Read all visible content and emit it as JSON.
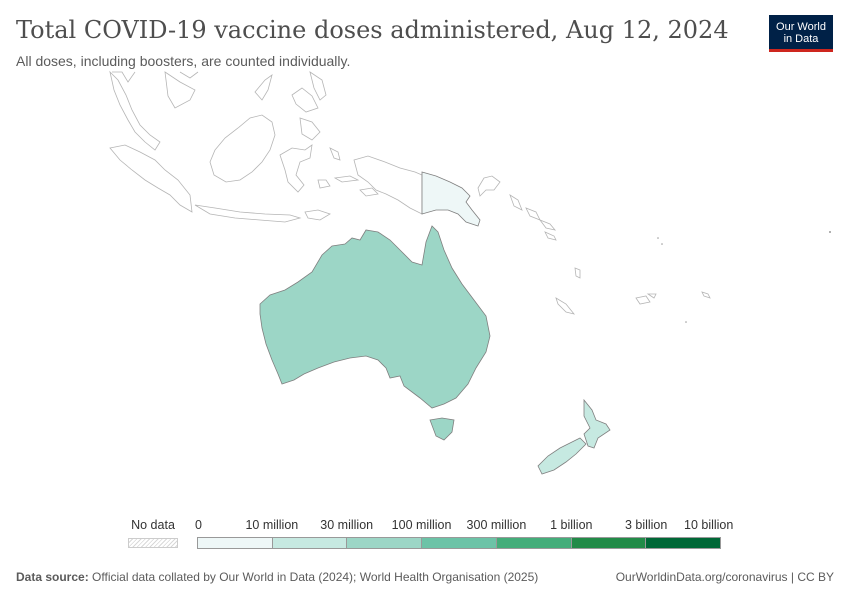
{
  "header": {
    "title": "Total COVID-19 vaccine doses administered, Aug 12, 2024",
    "subtitle": "All doses, including boosters, are counted individually."
  },
  "logo": {
    "line1": "Our World",
    "line2": "in Data"
  },
  "legend": {
    "no_data_label": "No data",
    "labels": [
      "0",
      "10 million",
      "30 million",
      "100 million",
      "300 million",
      "1 billion",
      "3 billion",
      "10 billion"
    ],
    "colors": [
      "#eef7f7",
      "#c6e9e1",
      "#9cd6c6",
      "#6cc3a7",
      "#44ad7a",
      "#228b48",
      "#006837"
    ]
  },
  "map_data": {
    "type": "choropleth",
    "region": "Oceania",
    "countries": [
      {
        "name": "Australia",
        "bin": 2
      },
      {
        "name": "New Zealand",
        "bin": 1
      },
      {
        "name": "Papua New Guinea",
        "bin": 0
      }
    ]
  },
  "footer": {
    "source_label": "Data source:",
    "source_text": " Official data collated by Our World in Data (2024); World Health Organisation (2025)",
    "link": "OurWorldinData.org/coronavirus | CC BY"
  }
}
